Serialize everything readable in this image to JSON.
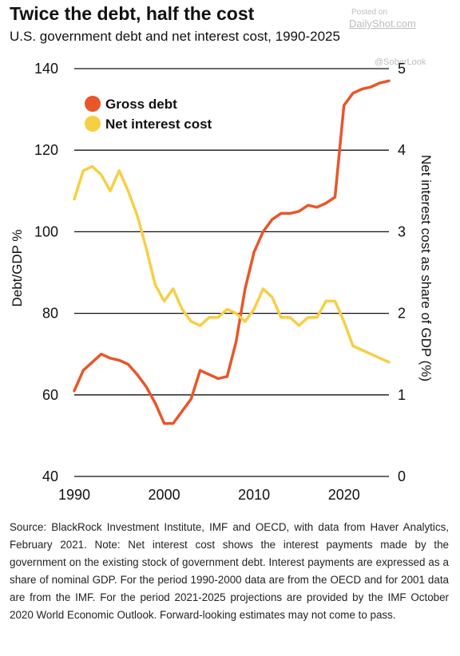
{
  "header": {
    "title": "Twice the debt, half the cost",
    "subtitle": "U.S. government debt and net interest cost, 1990-2025"
  },
  "watermark": {
    "posted_on": "Posted on",
    "site": "DailyShot.com",
    "handle": "@SoberLook"
  },
  "source_note": "Source: BlackRock Investment Institute, IMF and OECD, with data from Haver Analytics, February 2021. Note: Net interest cost shows the interest payments made by the government on the existing stock of government debt. Interest payments are expressed as a share of nominal GDP. For the period 1990-2000 data are from the OECD and for 2001 data are from the IMF. For the period 2021-2025 projections are provided by the IMF October 2020 World Economic Outlook. Forward-looking estimates may not come to pass.",
  "chart_data": {
    "type": "line",
    "title": "Twice the debt, half the cost",
    "subtitle": "U.S. government debt and net interest cost, 1990-2025",
    "ylabel": "Debt/GDP %",
    "y2label": "Net interest cost as share of GDP (%)",
    "xlim": [
      1990,
      2025
    ],
    "ylim": [
      40,
      140
    ],
    "y2lim": [
      0,
      5
    ],
    "xticks": [
      1990,
      2000,
      2010,
      2020
    ],
    "yticks": [
      40,
      60,
      80,
      100,
      120,
      140
    ],
    "y2ticks": [
      0,
      1,
      2,
      3,
      4,
      5
    ],
    "grid": true,
    "legend_position": "top-left",
    "series": [
      {
        "name": "Gross debt",
        "axis": "left",
        "color": "#e8562a",
        "x": [
          1990,
          1991,
          1992,
          1993,
          1994,
          1995,
          1996,
          1997,
          1998,
          1999,
          2000,
          2001,
          2002,
          2003,
          2004,
          2005,
          2006,
          2007,
          2008,
          2009,
          2010,
          2011,
          2012,
          2013,
          2014,
          2015,
          2016,
          2017,
          2018,
          2019,
          2020,
          2021,
          2022,
          2023,
          2024,
          2025
        ],
        "values": [
          61,
          66,
          68,
          70,
          69,
          68.5,
          67.5,
          65,
          62,
          58,
          53,
          53,
          56,
          59,
          66,
          65,
          64,
          64.5,
          73,
          86,
          95,
          100,
          103,
          104.5,
          104.5,
          105,
          106.5,
          106,
          107,
          108.5,
          131,
          134,
          135,
          135.5,
          136.5,
          137
        ]
      },
      {
        "name": "Net interest cost",
        "axis": "right",
        "color": "#f7cf45",
        "x": [
          1990,
          1991,
          1992,
          1993,
          1994,
          1995,
          1996,
          1997,
          1998,
          1999,
          2000,
          2001,
          2002,
          2003,
          2004,
          2005,
          2006,
          2007,
          2008,
          2009,
          2010,
          2011,
          2012,
          2013,
          2014,
          2015,
          2016,
          2017,
          2018,
          2019,
          2020,
          2021,
          2022,
          2023,
          2024,
          2025
        ],
        "values": [
          3.4,
          3.75,
          3.8,
          3.7,
          3.5,
          3.75,
          3.5,
          3.2,
          2.8,
          2.35,
          2.15,
          2.3,
          2.05,
          1.9,
          1.85,
          1.95,
          1.95,
          2.05,
          2.0,
          1.9,
          2.05,
          2.3,
          2.2,
          1.95,
          1.95,
          1.85,
          1.95,
          1.95,
          2.15,
          2.15,
          1.9,
          1.6,
          1.55,
          1.5,
          1.45,
          1.4
        ]
      }
    ]
  }
}
